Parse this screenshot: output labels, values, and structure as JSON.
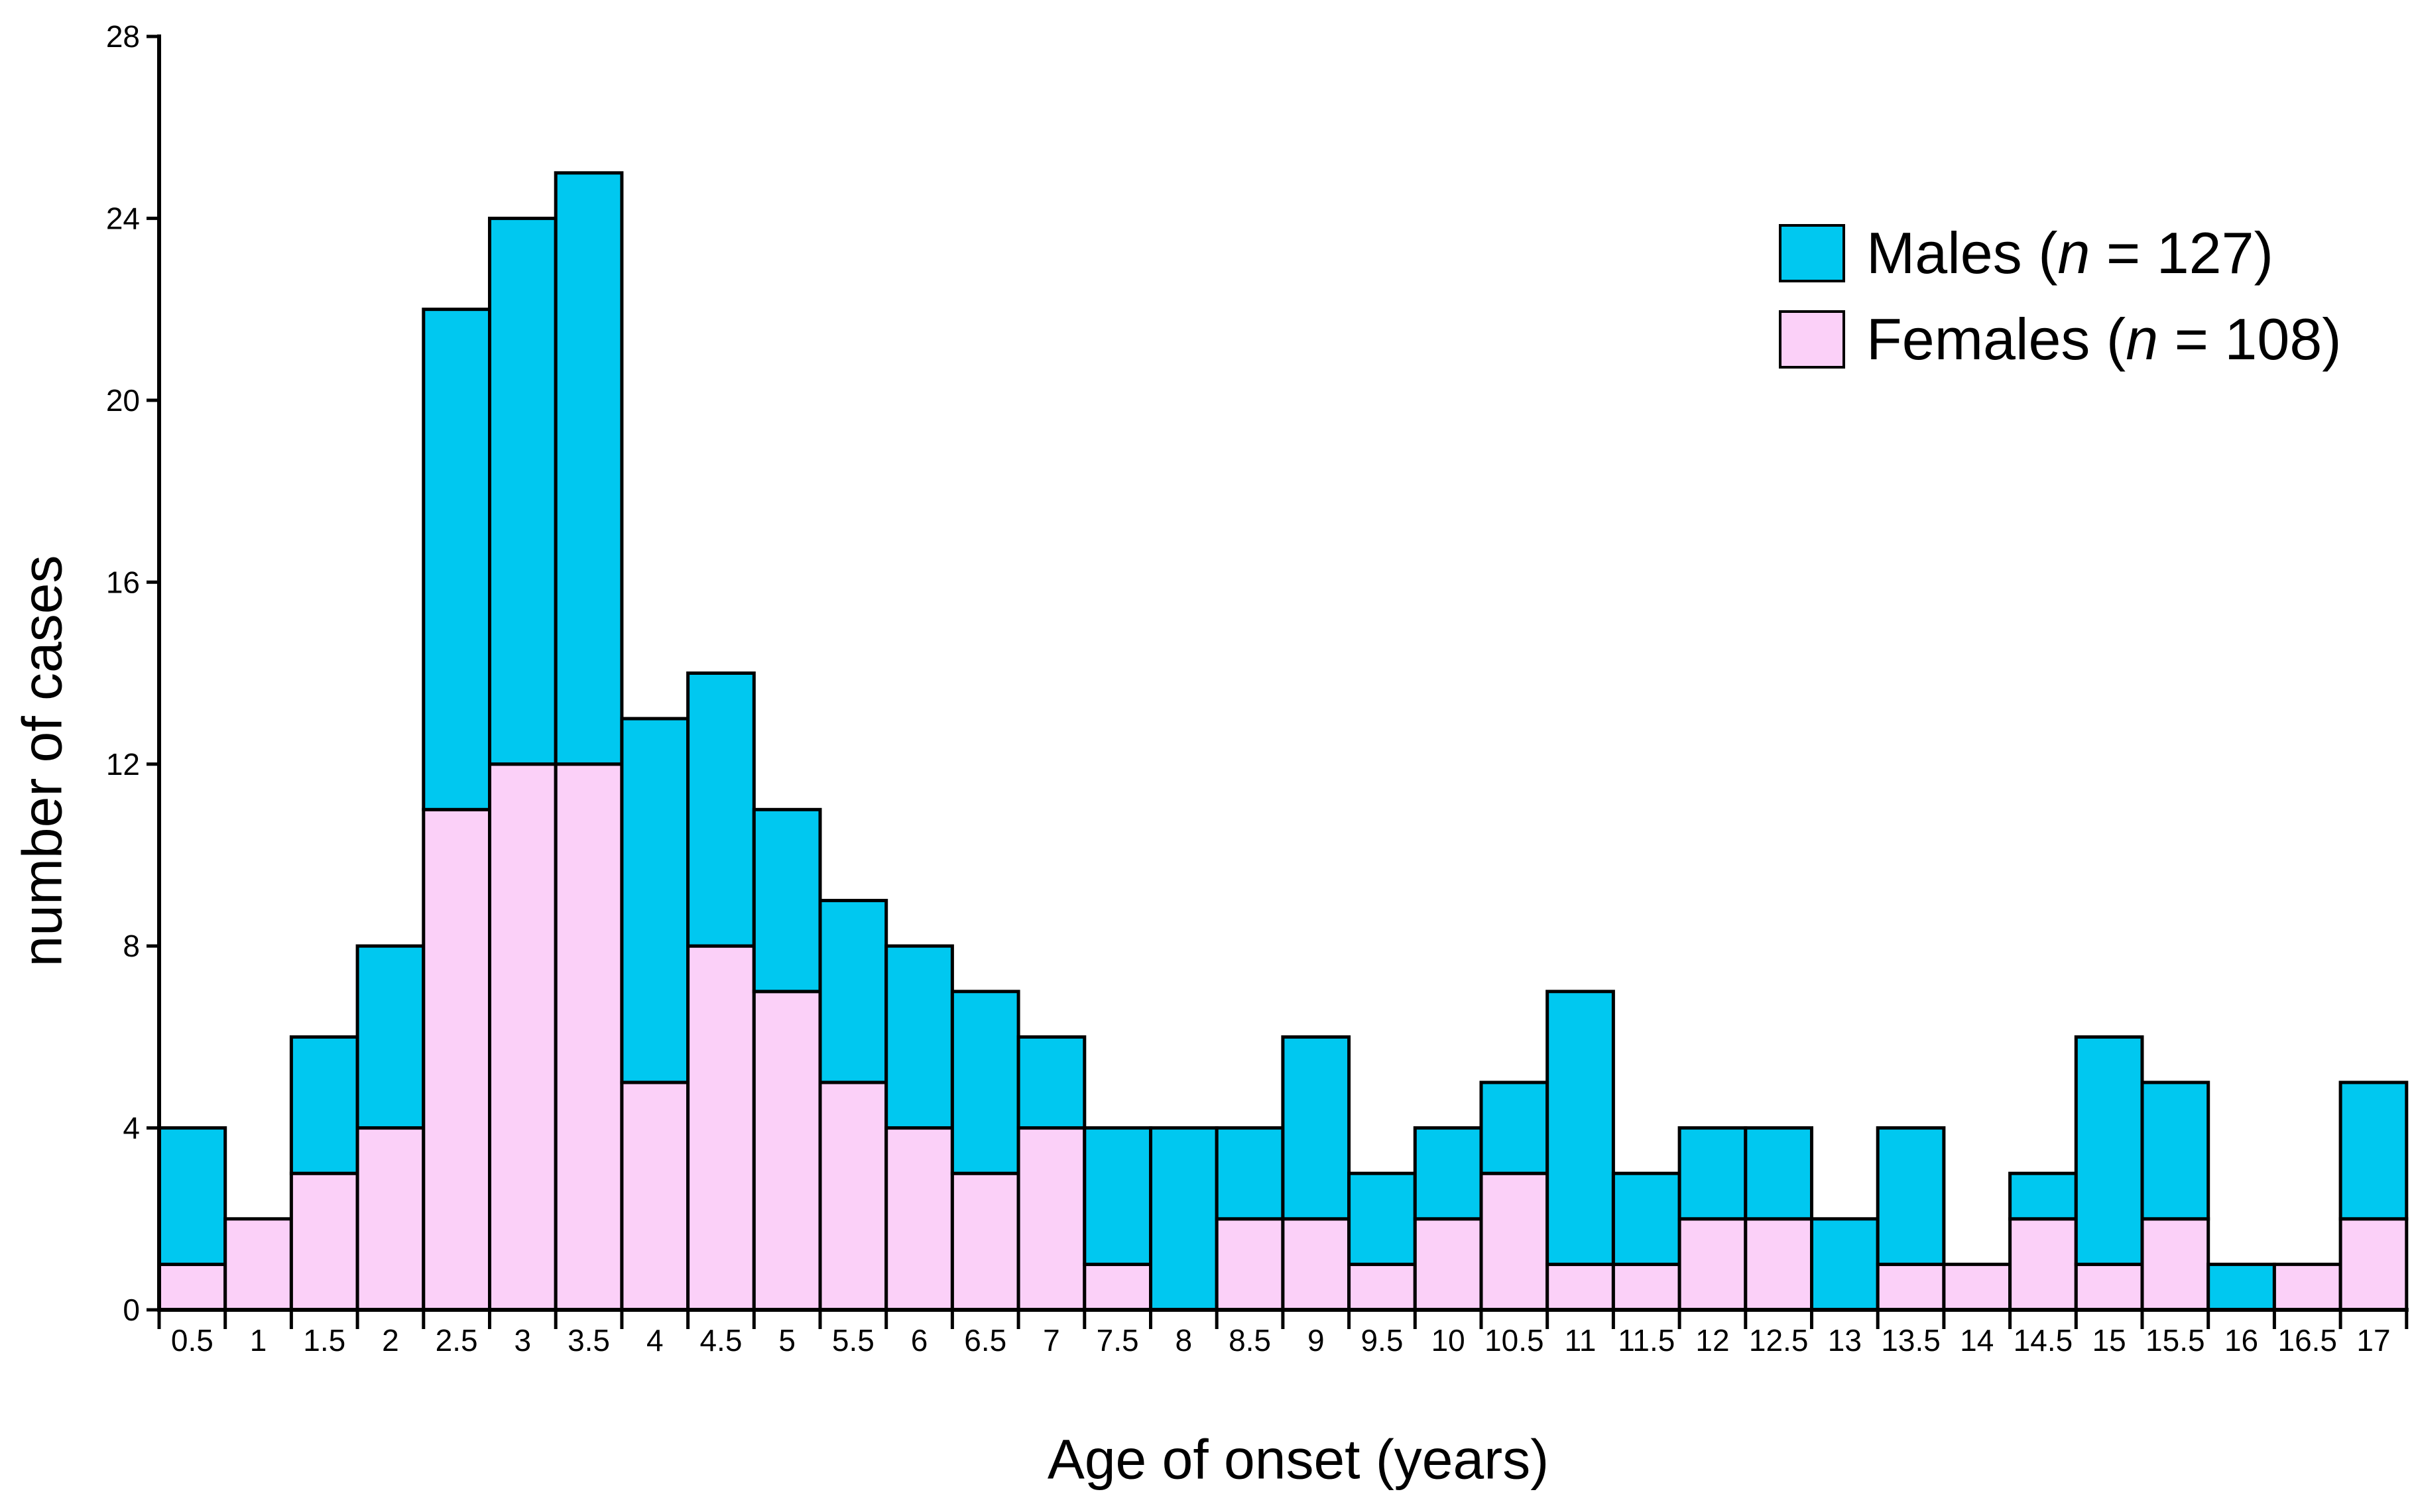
{
  "figure": {
    "background": "#ffffff"
  },
  "colors": {
    "male": "#00c8f0",
    "female": "#fbd0f8",
    "outline": "#000000",
    "axis": "#000000",
    "text": "#000000"
  },
  "legend": {
    "items": [
      {
        "key": "male",
        "pre": "Males (",
        "var": "n",
        "post": " = 127)"
      },
      {
        "key": "female",
        "pre": "Females (",
        "var": "n",
        "post": " = 108)"
      }
    ]
  },
  "chart_data": {
    "type": "bar",
    "stacked": true,
    "title": "",
    "xlabel": "Age of onset (years)",
    "ylabel": "number of cases",
    "categories": [
      "0.5",
      "1",
      "1.5",
      "2",
      "2.5",
      "3",
      "3.5",
      "4",
      "4.5",
      "5",
      "5.5",
      "6",
      "6.5",
      "7",
      "7.5",
      "8",
      "8.5",
      "9",
      "9.5",
      "10",
      "10.5",
      "11",
      "11.5",
      "12",
      "12.5",
      "13",
      "13.5",
      "14",
      "14.5",
      "15",
      "15.5",
      "16",
      "16.5",
      "17"
    ],
    "series": [
      {
        "name": "Females (n = 108)",
        "color_key": "female",
        "values": [
          1,
          2,
          3,
          4,
          11,
          12,
          12,
          5,
          8,
          7,
          5,
          4,
          3,
          4,
          1,
          0,
          2,
          2,
          1,
          2,
          3,
          1,
          1,
          2,
          2,
          0,
          1,
          1,
          2,
          1,
          2,
          0,
          1,
          2
        ]
      },
      {
        "name": "Males (n = 127)",
        "color_key": "male",
        "values": [
          3,
          0,
          3,
          4,
          11,
          12,
          13,
          8,
          6,
          4,
          4,
          4,
          4,
          2,
          3,
          4,
          2,
          4,
          2,
          2,
          2,
          6,
          2,
          2,
          2,
          2,
          3,
          0,
          1,
          5,
          3,
          1,
          0,
          3
        ]
      }
    ],
    "totals": [
      4,
      2,
      6,
      8,
      22,
      24,
      25,
      13,
      14,
      11,
      9,
      8,
      7,
      6,
      4,
      4,
      4,
      6,
      3,
      4,
      5,
      7,
      3,
      4,
      4,
      2,
      4,
      1,
      3,
      6,
      5,
      1,
      1,
      5
    ],
    "ylim": [
      0,
      28
    ],
    "yticks": [
      0,
      4,
      8,
      12,
      16,
      20,
      24,
      28
    ],
    "grid": false,
    "legend_position": "upper right"
  }
}
